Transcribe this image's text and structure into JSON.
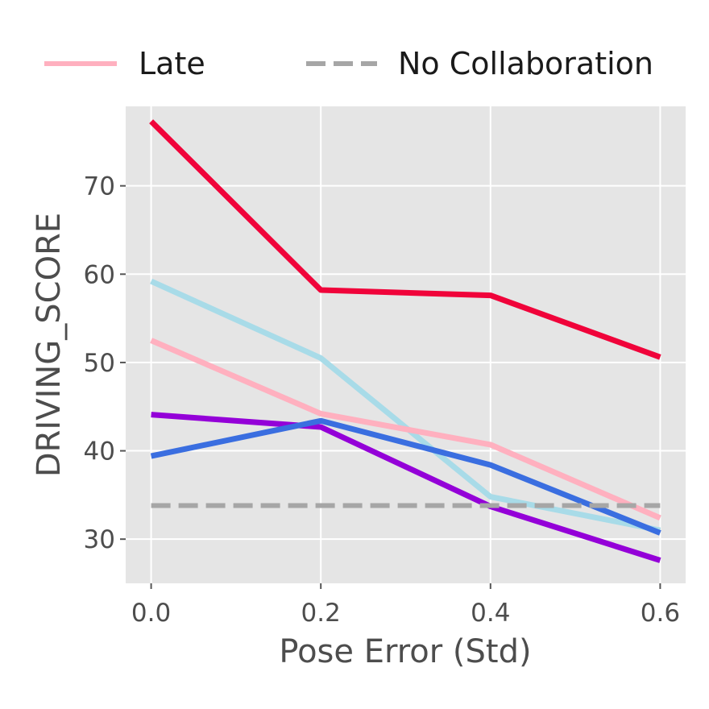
{
  "chart_data": {
    "type": "line",
    "title": "",
    "xlabel": "Pose Error (Std)",
    "ylabel": "DRIVING_SCORE",
    "x": [
      0.0,
      0.2,
      0.4,
      0.6
    ],
    "xticks": [
      "0.0",
      "0.2",
      "0.4",
      "0.6"
    ],
    "yticks": [
      "30",
      "40",
      "50",
      "60",
      "70"
    ],
    "xlim": [
      -0.03,
      0.63
    ],
    "ylim": [
      25,
      79
    ],
    "grid": true,
    "legend_position": "top",
    "series": [
      {
        "values": [
          77.3,
          58.2,
          57.6,
          50.6
        ],
        "color": "#f0033a",
        "style": "solid"
      },
      {
        "values": [
          59.2,
          50.5,
          34.8,
          31.0
        ],
        "color": "#a8dbe8",
        "style": "solid"
      },
      {
        "name": "Late",
        "values": [
          52.5,
          44.2,
          40.7,
          32.4
        ],
        "color": "#ffb0bf",
        "style": "solid"
      },
      {
        "values": [
          44.1,
          42.7,
          33.7,
          27.6
        ],
        "color": "#9400d8",
        "style": "solid"
      },
      {
        "values": [
          39.4,
          43.4,
          38.4,
          30.7
        ],
        "color": "#3a6ee0",
        "style": "solid"
      },
      {
        "name": "No Collaboration",
        "values": [
          33.8,
          33.8,
          33.8,
          33.8
        ],
        "color": "#a6a6a6",
        "style": "dashed"
      }
    ]
  }
}
